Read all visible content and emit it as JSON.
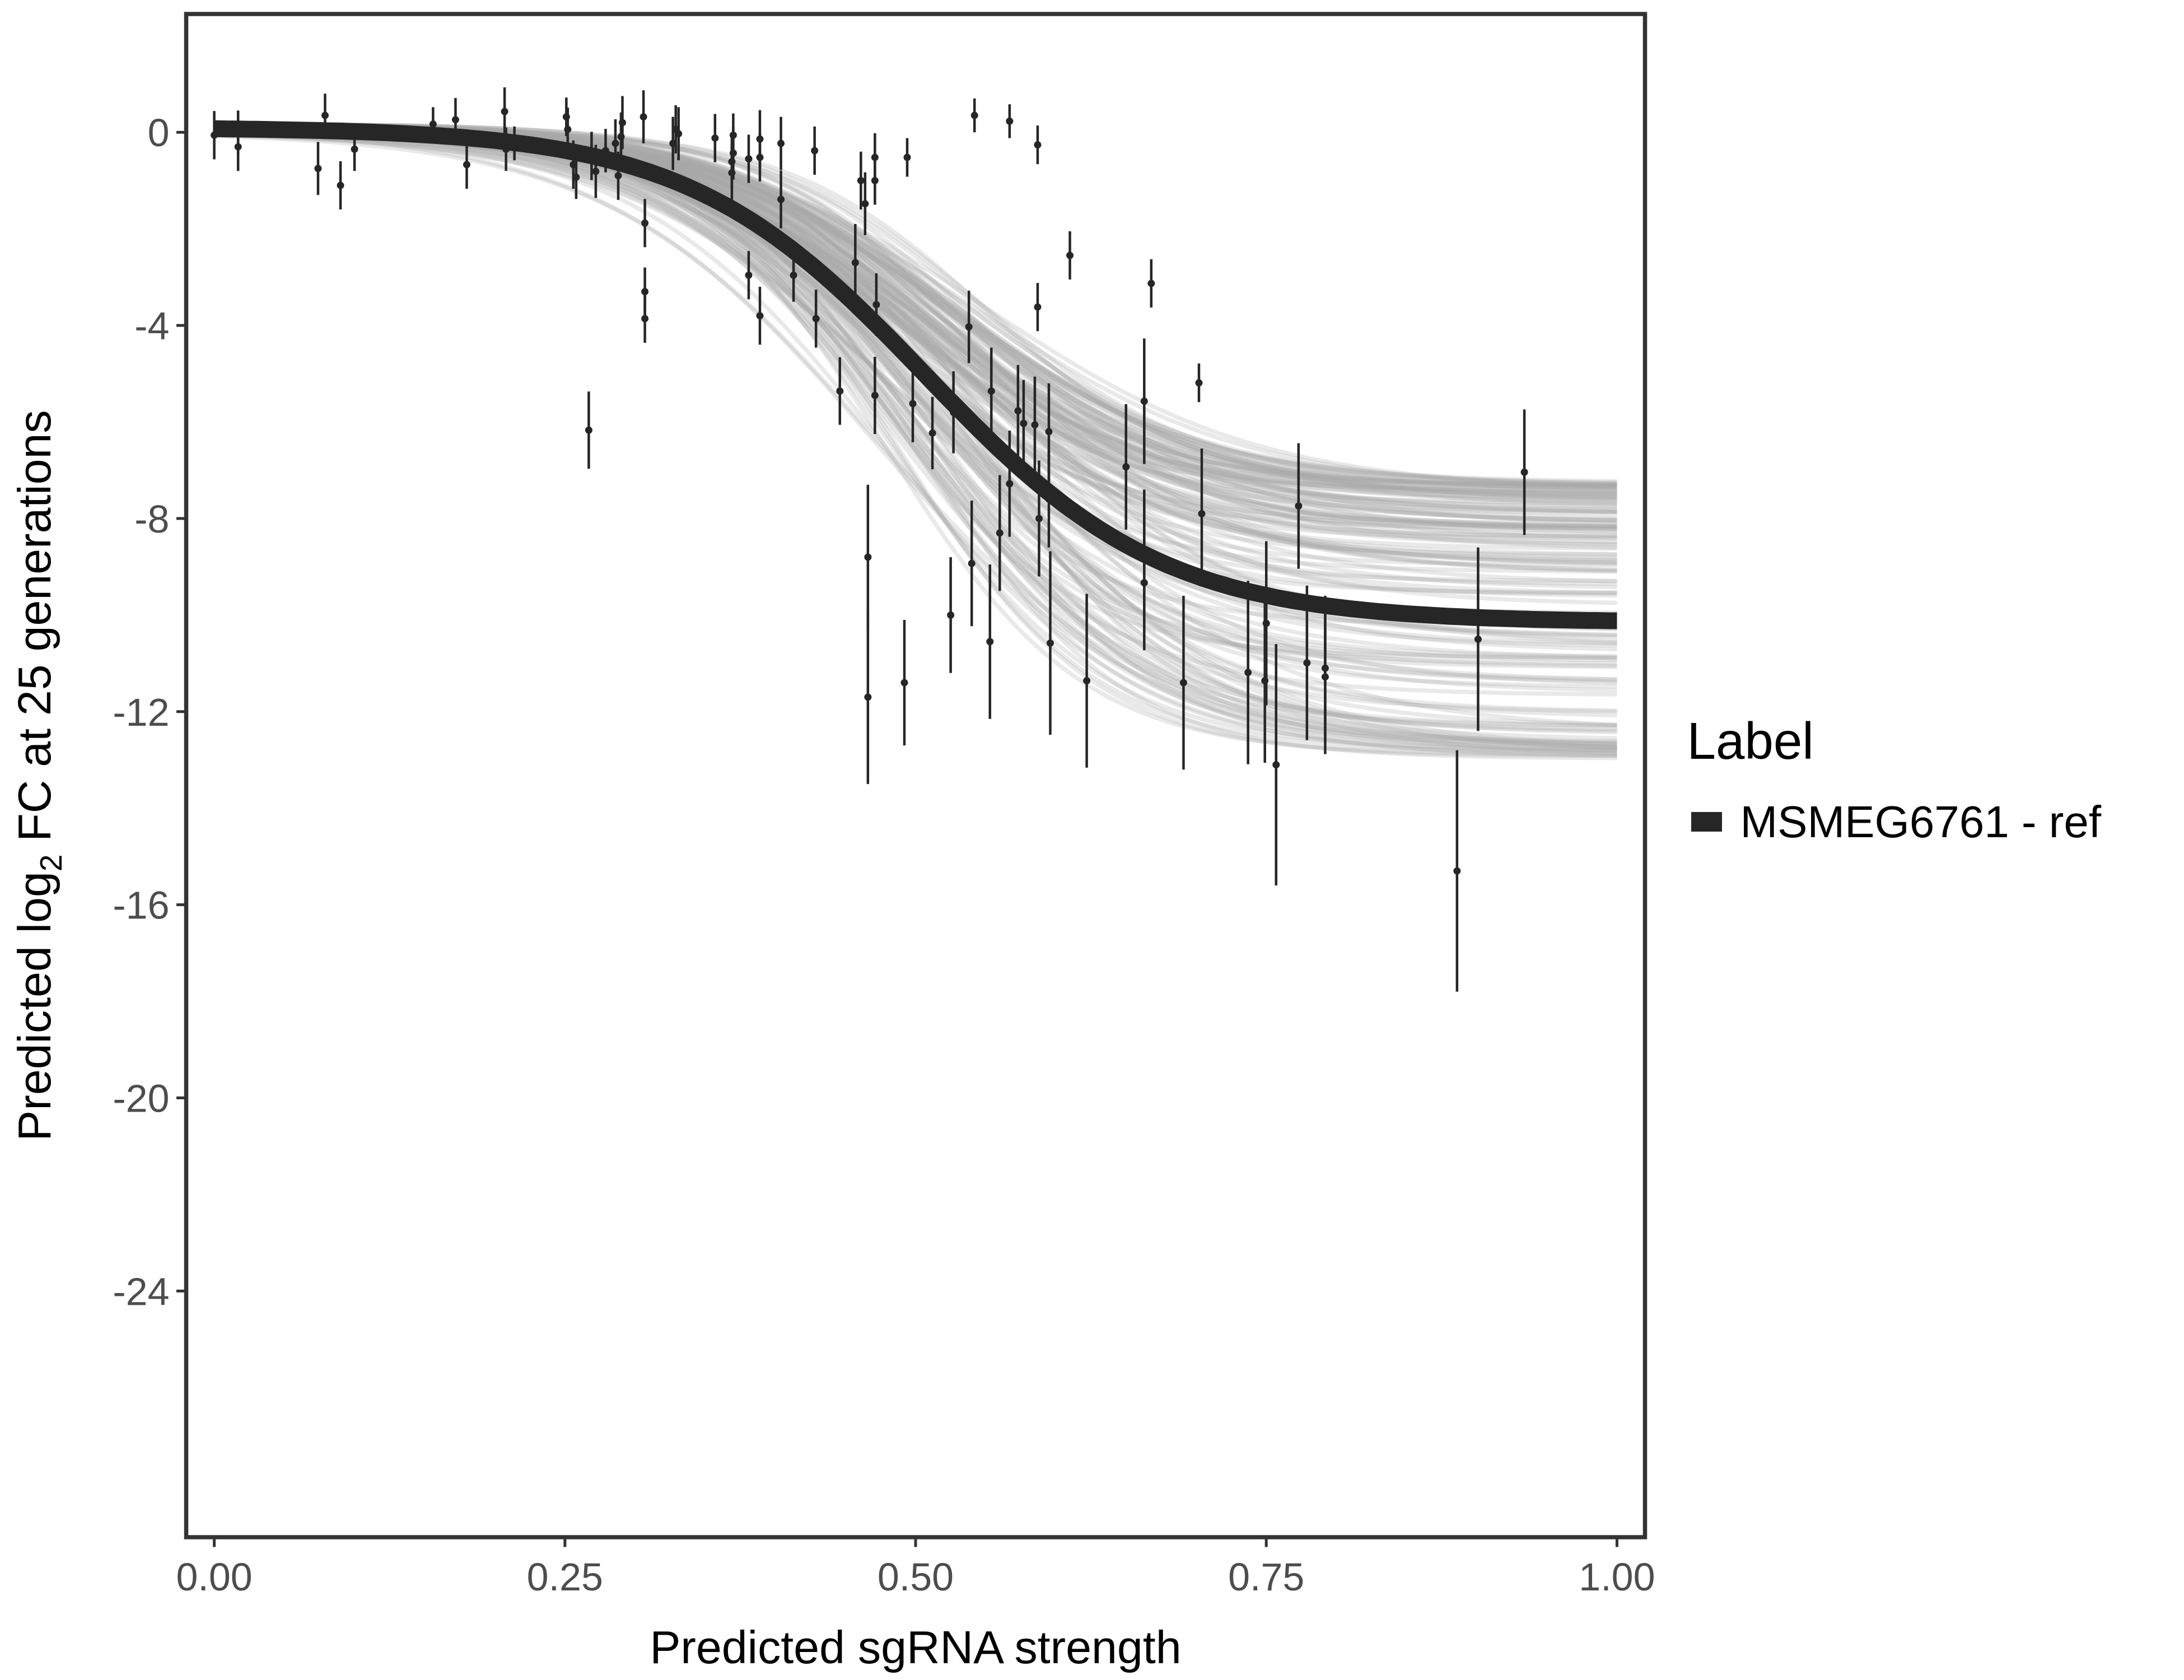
{
  "chart_data": {
    "type": "line",
    "xlabel": "Predicted sgRNA strength",
    "ylabel_parts": {
      "pre": "Predicted  log",
      "sub": "2",
      "post": " FC at 25 generations"
    },
    "xlim": [
      -0.02,
      1.02
    ],
    "ylim": [
      -29.1,
      2.45
    ],
    "x_ticks": [
      0,
      0.25,
      0.5,
      0.75,
      1
    ],
    "x_tick_labels": [
      "0.00",
      "0.25",
      "0.50",
      "0.75",
      "1.00"
    ],
    "y_ticks": [
      0,
      -4,
      -8,
      -12,
      -16,
      -20,
      -24
    ],
    "y_tick_labels": [
      "0",
      "-4",
      "-8",
      "-12",
      "-16",
      "-20",
      "-24"
    ],
    "grid": false,
    "legend": {
      "title": "Label",
      "position": "right",
      "entries": [
        {
          "label": "MSMEG6761 - ref",
          "color": "#262626"
        }
      ]
    },
    "fit_curve": {
      "model": "logistic",
      "top": 0.1,
      "amplitude": -10.25,
      "midpoint": 0.507,
      "scale": 0.085,
      "color": "#262626"
    },
    "posterior_band": {
      "color": "#a6a6a6",
      "amplitude_range": [
        -13.0,
        -7.4
      ],
      "midpoint_range": [
        0.47,
        0.55
      ],
      "scale_range": [
        0.07,
        0.1
      ]
    },
    "points_columns": [
      "x",
      "y",
      "err"
    ],
    "points": [
      [
        0.0,
        -0.06,
        0.5
      ],
      [
        0.017,
        0.0,
        0.45
      ],
      [
        0.017,
        -0.3,
        0.5
      ],
      [
        0.074,
        -0.75,
        0.55
      ],
      [
        0.079,
        0.35,
        0.45
      ],
      [
        0.09,
        -1.1,
        0.5
      ],
      [
        0.1,
        -0.35,
        0.45
      ],
      [
        0.156,
        0.17,
        0.35
      ],
      [
        0.172,
        0.26,
        0.45
      ],
      [
        0.18,
        -0.67,
        0.5
      ],
      [
        0.207,
        0.43,
        0.5
      ],
      [
        0.208,
        -0.35,
        0.45
      ],
      [
        0.214,
        -0.23,
        0.35
      ],
      [
        0.251,
        0.32,
        0.4
      ],
      [
        0.252,
        0.06,
        0.45
      ],
      [
        0.256,
        -0.67,
        0.5
      ],
      [
        0.258,
        -0.93,
        0.45
      ],
      [
        0.267,
        -6.17,
        0.8
      ],
      [
        0.269,
        -0.49,
        0.5
      ],
      [
        0.272,
        -0.81,
        0.55
      ],
      [
        0.279,
        -0.38,
        0.45
      ],
      [
        0.286,
        -0.23,
        0.5
      ],
      [
        0.288,
        -0.9,
        0.5
      ],
      [
        0.29,
        -0.09,
        0.5
      ],
      [
        0.291,
        0.2,
        0.55
      ],
      [
        0.306,
        0.32,
        0.55
      ],
      [
        0.307,
        -1.88,
        0.5
      ],
      [
        0.307,
        -3.3,
        0.5
      ],
      [
        0.307,
        -3.86,
        0.5
      ],
      [
        0.327,
        -0.23,
        0.55
      ],
      [
        0.329,
        0.06,
        0.5
      ],
      [
        0.331,
        -0.03,
        0.55
      ],
      [
        0.357,
        -0.12,
        0.5
      ],
      [
        0.369,
        -0.61,
        0.55
      ],
      [
        0.369,
        -0.84,
        0.6
      ],
      [
        0.37,
        -0.06,
        0.45
      ],
      [
        0.37,
        -0.43,
        0.55
      ],
      [
        0.381,
        -2.96,
        0.5
      ],
      [
        0.381,
        -0.55,
        0.5
      ],
      [
        0.389,
        -0.14,
        0.6
      ],
      [
        0.389,
        -3.8,
        0.6
      ],
      [
        0.389,
        -0.52,
        0.5
      ],
      [
        0.404,
        -1.39,
        0.6
      ],
      [
        0.404,
        -0.23,
        0.55
      ],
      [
        0.413,
        -2.96,
        0.55
      ],
      [
        0.428,
        -0.38,
        0.5
      ],
      [
        0.429,
        -3.86,
        0.6
      ],
      [
        0.446,
        -5.36,
        0.7
      ],
      [
        0.457,
        -2.7,
        0.8
      ],
      [
        0.461,
        -1.0,
        0.6
      ],
      [
        0.464,
        -1.48,
        0.65
      ],
      [
        0.466,
        -8.8,
        1.5
      ],
      [
        0.466,
        -11.7,
        1.8
      ],
      [
        0.471,
        -1.0,
        0.5
      ],
      [
        0.471,
        -0.52,
        0.5
      ],
      [
        0.471,
        -5.45,
        0.8
      ],
      [
        0.472,
        -3.57,
        0.65
      ],
      [
        0.492,
        -11.4,
        1.3
      ],
      [
        0.494,
        -0.52,
        0.4
      ],
      [
        0.498,
        -5.62,
        0.8
      ],
      [
        0.512,
        -6.23,
        0.75
      ],
      [
        0.525,
        -10.0,
        1.2
      ],
      [
        0.527,
        -5.8,
        0.85
      ],
      [
        0.538,
        -4.03,
        0.75
      ],
      [
        0.54,
        -8.93,
        1.3
      ],
      [
        0.542,
        0.35,
        0.35
      ],
      [
        0.553,
        -10.55,
        1.6
      ],
      [
        0.554,
        -5.36,
        0.9
      ],
      [
        0.56,
        -8.3,
        1.2
      ],
      [
        0.567,
        0.23,
        0.35
      ],
      [
        0.567,
        -7.28,
        1.1
      ],
      [
        0.573,
        -5.77,
        0.95
      ],
      [
        0.577,
        -6.03,
        0.9
      ],
      [
        0.585,
        -6.06,
        1.0
      ],
      [
        0.587,
        -0.26,
        0.4
      ],
      [
        0.587,
        -3.62,
        0.5
      ],
      [
        0.588,
        -8.0,
        1.2
      ],
      [
        0.595,
        -7.6,
        1.0
      ],
      [
        0.596,
        -10.58,
        1.9
      ],
      [
        0.595,
        -6.2,
        1.0
      ],
      [
        0.61,
        -2.55,
        0.5
      ],
      [
        0.622,
        -11.36,
        1.8
      ],
      [
        0.65,
        -6.93,
        1.3
      ],
      [
        0.663,
        -5.57,
        1.3
      ],
      [
        0.663,
        -8.8,
        1.4
      ],
      [
        0.663,
        -9.33,
        1.4
      ],
      [
        0.668,
        -3.13,
        0.5
      ],
      [
        0.691,
        -11.4,
        1.8
      ],
      [
        0.702,
        -5.19,
        0.4
      ],
      [
        0.704,
        -7.9,
        1.35
      ],
      [
        0.737,
        -11.19,
        1.9
      ],
      [
        0.749,
        -11.36,
        1.7
      ],
      [
        0.75,
        -10.17,
        1.7
      ],
      [
        0.757,
        -13.1,
        2.5
      ],
      [
        0.773,
        -7.74,
        1.3
      ],
      [
        0.779,
        -10.99,
        1.6
      ],
      [
        0.792,
        -11.1,
        1.5
      ],
      [
        0.792,
        -11.28,
        1.6
      ],
      [
        0.886,
        -15.3,
        2.5
      ],
      [
        0.901,
        -10.5,
        1.9
      ],
      [
        0.934,
        -7.04,
        1.3
      ]
    ]
  }
}
